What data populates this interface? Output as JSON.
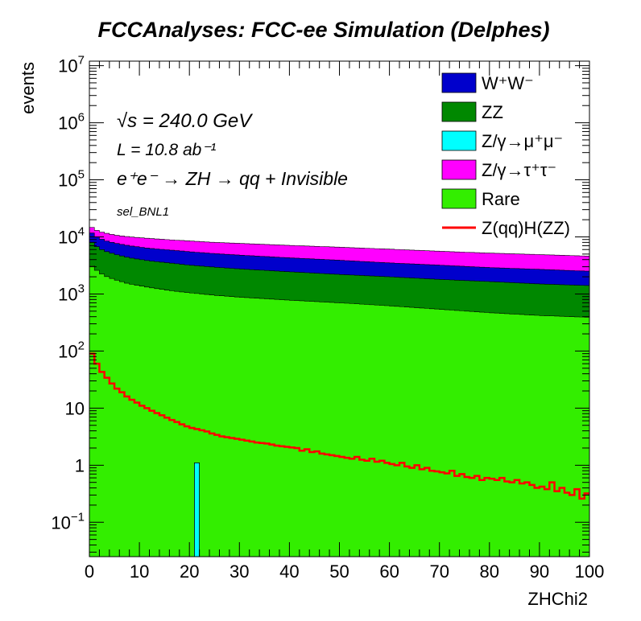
{
  "chart_data": {
    "type": "histogram-stacked",
    "title": "FCCAnalyses: FCC-ee Simulation (Delphes)",
    "xlabel": "ZHChi2",
    "ylabel": "events",
    "xlim": [
      0,
      100
    ],
    "ylim": [
      0.025,
      12000000
    ],
    "log_y": true,
    "x_ticks": [
      "0",
      "10",
      "20",
      "30",
      "40",
      "50",
      "60",
      "70",
      "80",
      "90",
      "100"
    ],
    "y_ticks": [
      "10^-1",
      "1",
      "10",
      "10^2",
      "10^3",
      "10^4",
      "10^5",
      "10^6",
      "10^7"
    ],
    "annotations": {
      "sqrt_s": "√s = 240.0 GeV",
      "lumi": "L = 10.8 ab⁻¹",
      "process": "e⁺e⁻ → ZH → qq + Invisible",
      "selection": "sel_BNL1"
    },
    "legend_position": "top-right",
    "legend": [
      {
        "label": "W⁺W⁻",
        "color": "#0000cc",
        "kind": "fill"
      },
      {
        "label": "ZZ",
        "color": "#008800",
        "kind": "fill"
      },
      {
        "label": "Z/γ→μ⁺μ⁻",
        "color": "#00ffff",
        "kind": "fill"
      },
      {
        "label": "Z/γ→τ⁺τ⁻",
        "color": "#ff00ff",
        "kind": "fill"
      },
      {
        "label": "Rare",
        "color": "#33ee00",
        "kind": "fill"
      },
      {
        "label": "Z(qq)H(ZZ)",
        "color": "#ff0000",
        "kind": "line"
      }
    ],
    "bin_width": 1,
    "stack_order_bottom_to_top": [
      "Rare",
      "Z/γ→μ⁺μ⁻",
      "ZZ",
      "W⁺W⁻",
      "Z/γ→τ⁺τ⁻"
    ],
    "series": [
      {
        "name": "Rare",
        "color": "#33ee00",
        "anchors_x": [
          0,
          1,
          2,
          3,
          5,
          8,
          12,
          16,
          20,
          25,
          30,
          40,
          50,
          60,
          70,
          80,
          90,
          100
        ],
        "anchors_y": [
          3500,
          2800,
          2400,
          2100,
          1800,
          1500,
          1300,
          1150,
          1050,
          950,
          880,
          780,
          700,
          620,
          540,
          470,
          420,
          390
        ]
      },
      {
        "name": "Z/γ→μ⁺μ⁻",
        "color": "#00ffff",
        "bins": [
          {
            "x": 21,
            "value": 1.1
          }
        ]
      },
      {
        "name": "ZZ",
        "color": "#008800",
        "top_anchors_x": [
          0,
          1,
          2,
          3,
          5,
          8,
          12,
          16,
          20,
          25,
          30,
          40,
          50,
          60,
          70,
          80,
          90,
          100
        ],
        "top_anchors_y": [
          9000,
          7200,
          6300,
          5700,
          5000,
          4300,
          3800,
          3500,
          3200,
          2950,
          2750,
          2450,
          2200,
          2000,
          1800,
          1650,
          1500,
          1400
        ]
      },
      {
        "name": "W⁺W⁻",
        "color": "#0000cc",
        "top_anchors_x": [
          0,
          1,
          2,
          3,
          5,
          8,
          12,
          16,
          20,
          25,
          30,
          40,
          50,
          60,
          70,
          80,
          90,
          100
        ],
        "top_anchors_y": [
          13000,
          10500,
          9500,
          8700,
          7800,
          7000,
          6300,
          5900,
          5500,
          5100,
          4800,
          4300,
          3900,
          3500,
          3200,
          2900,
          2700,
          2500
        ]
      },
      {
        "name": "Z/γ→τ⁺τ⁻",
        "color": "#ff00ff",
        "top_anchors_x": [
          0,
          1,
          2,
          3,
          5,
          8,
          12,
          16,
          20,
          25,
          30,
          40,
          50,
          60,
          70,
          80,
          90,
          100
        ],
        "top_anchors_y": [
          16000,
          13500,
          12500,
          11800,
          10800,
          10000,
          9400,
          8900,
          8500,
          8000,
          7700,
          7100,
          6600,
          6100,
          5600,
          5200,
          4900,
          4600
        ]
      },
      {
        "name": "Z(qq)H(ZZ)",
        "color": "#ff0000",
        "style": "step-line",
        "values": [
          90,
          60,
          43,
          34,
          27,
          22,
          19,
          16,
          14,
          12.5,
          11,
          10,
          9,
          8.2,
          7.5,
          6.8,
          6.2,
          5.7,
          5.2,
          4.8,
          4.5,
          4.3,
          4.1,
          3.9,
          3.6,
          3.4,
          3.2,
          3.1,
          3.0,
          2.9,
          2.8,
          2.7,
          2.6,
          2.5,
          2.45,
          2.4,
          2.3,
          2.2,
          2.15,
          2.1,
          2.05,
          2.0,
          1.8,
          1.9,
          1.7,
          1.75,
          1.6,
          1.55,
          1.5,
          1.45,
          1.4,
          1.35,
          1.3,
          1.4,
          1.25,
          1.2,
          1.3,
          1.15,
          1.2,
          1.1,
          1.05,
          1.0,
          1.1,
          0.95,
          0.9,
          1.0,
          0.85,
          0.9,
          0.8,
          0.78,
          0.75,
          0.72,
          0.8,
          0.65,
          0.7,
          0.62,
          0.6,
          0.65,
          0.55,
          0.6,
          0.58,
          0.55,
          0.6,
          0.52,
          0.5,
          0.55,
          0.48,
          0.5,
          0.45,
          0.4,
          0.42,
          0.38,
          0.5,
          0.35,
          0.4,
          0.33,
          0.3,
          0.38,
          0.26,
          0.32
        ]
      }
    ]
  }
}
